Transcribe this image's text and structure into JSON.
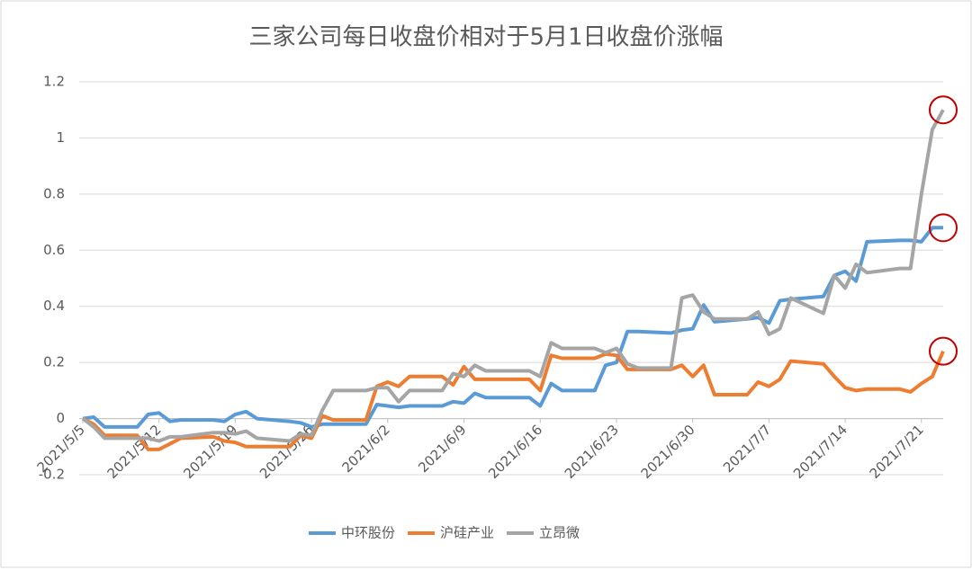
{
  "chart_data": {
    "type": "line",
    "title": "三家公司每日收盘价相对于5月1日收盘价涨幅",
    "x": [
      "2021/5/5",
      "2021/5/6",
      "2021/5/7",
      "2021/5/10",
      "2021/5/11",
      "2021/5/12",
      "2021/5/13",
      "2021/5/14",
      "2021/5/17",
      "2021/5/18",
      "2021/5/19",
      "2021/5/20",
      "2021/5/21",
      "2021/5/24",
      "2021/5/25",
      "2021/5/26",
      "2021/5/27",
      "2021/5/28",
      "2021/5/31",
      "2021/6/1",
      "2021/6/2",
      "2021/6/3",
      "2021/6/4",
      "2021/6/7",
      "2021/6/8",
      "2021/6/9",
      "2021/6/10",
      "2021/6/11",
      "2021/6/15",
      "2021/6/16",
      "2021/6/17",
      "2021/6/18",
      "2021/6/21",
      "2021/6/22",
      "2021/6/23",
      "2021/6/24",
      "2021/6/25",
      "2021/6/28",
      "2021/6/29",
      "2021/6/30",
      "2021/7/1",
      "2021/7/2",
      "2021/7/5",
      "2021/7/6",
      "2021/7/7",
      "2021/7/8",
      "2021/7/9",
      "2021/7/12",
      "2021/7/13",
      "2021/7/14",
      "2021/7/15",
      "2021/7/16",
      "2021/7/19",
      "2021/7/20",
      "2021/7/21",
      "2021/7/22",
      "2021/7/23"
    ],
    "series": [
      {
        "name": "中环股份",
        "color": "#5b9bd5",
        "values": [
          0,
          0.005,
          -0.03,
          -0.03,
          0.015,
          0.02,
          -0.01,
          -0.005,
          -0.005,
          -0.01,
          0.015,
          0.025,
          0,
          -0.01,
          -0.015,
          -0.03,
          -0.02,
          -0.02,
          -0.02,
          0.05,
          0.045,
          0.04,
          0.045,
          0.045,
          0.06,
          0.055,
          0.09,
          0.075,
          0.075,
          0.045,
          0.125,
          0.1,
          0.1,
          0.19,
          0.2,
          0.31,
          0.31,
          0.305,
          0.315,
          0.32,
          0.405,
          0.345,
          0.355,
          0.36,
          0.34,
          0.42,
          0.425,
          0.435,
          0.51,
          0.525,
          0.49,
          0.63,
          0.635,
          0.635,
          0.63,
          0.68,
          0.68
        ]
      },
      {
        "name": "沪硅产业",
        "color": "#ed7d31",
        "values": [
          0,
          -0.02,
          -0.06,
          -0.06,
          -0.11,
          -0.11,
          -0.09,
          -0.07,
          -0.065,
          -0.08,
          -0.085,
          -0.1,
          -0.1,
          -0.1,
          -0.06,
          -0.07,
          0.01,
          -0.005,
          -0.005,
          0.115,
          0.13,
          0.115,
          0.15,
          0.15,
          0.12,
          0.185,
          0.14,
          0.14,
          0.14,
          0.1,
          0.225,
          0.215,
          0.215,
          0.23,
          0.225,
          0.175,
          0.175,
          0.175,
          0.19,
          0.15,
          0.19,
          0.085,
          0.085,
          0.13,
          0.115,
          0.14,
          0.205,
          0.195,
          0.15,
          0.11,
          0.1,
          0.105,
          0.105,
          0.095,
          0.125,
          0.15,
          0.24
        ]
      },
      {
        "name": "立昂微",
        "color": "#a5a5a5",
        "values": [
          0,
          -0.03,
          -0.07,
          -0.07,
          -0.07,
          -0.08,
          -0.065,
          -0.065,
          -0.05,
          -0.05,
          -0.055,
          -0.045,
          -0.07,
          -0.08,
          -0.055,
          -0.06,
          0.03,
          0.1,
          0.1,
          0.11,
          0.11,
          0.06,
          0.1,
          0.1,
          0.16,
          0.15,
          0.19,
          0.17,
          0.17,
          0.15,
          0.27,
          0.25,
          0.25,
          0.235,
          0.25,
          0.195,
          0.18,
          0.18,
          0.43,
          0.44,
          0.38,
          0.355,
          0.355,
          0.38,
          0.3,
          0.32,
          0.43,
          0.375,
          0.51,
          0.465,
          0.55,
          0.52,
          0.535,
          0.535,
          0.8,
          1.03,
          1.1
        ]
      }
    ],
    "xlim": [
      "2021/5/5",
      "2021/7/23"
    ],
    "xticks": [
      "2021/5/5",
      "2021/5/12",
      "2021/5/19",
      "2021/5/26",
      "2021/6/2",
      "2021/6/9",
      "2021/6/16",
      "2021/6/23",
      "2021/6/30",
      "2021/7/7",
      "2021/7/14",
      "2021/7/21"
    ],
    "ylim": [
      -0.2,
      1.2
    ],
    "yticks": [
      -0.2,
      0,
      0.2,
      0.4,
      0.6,
      0.8,
      1,
      1.2
    ],
    "grid": true,
    "legend": "bottom",
    "highlight_color": "#c00000"
  }
}
